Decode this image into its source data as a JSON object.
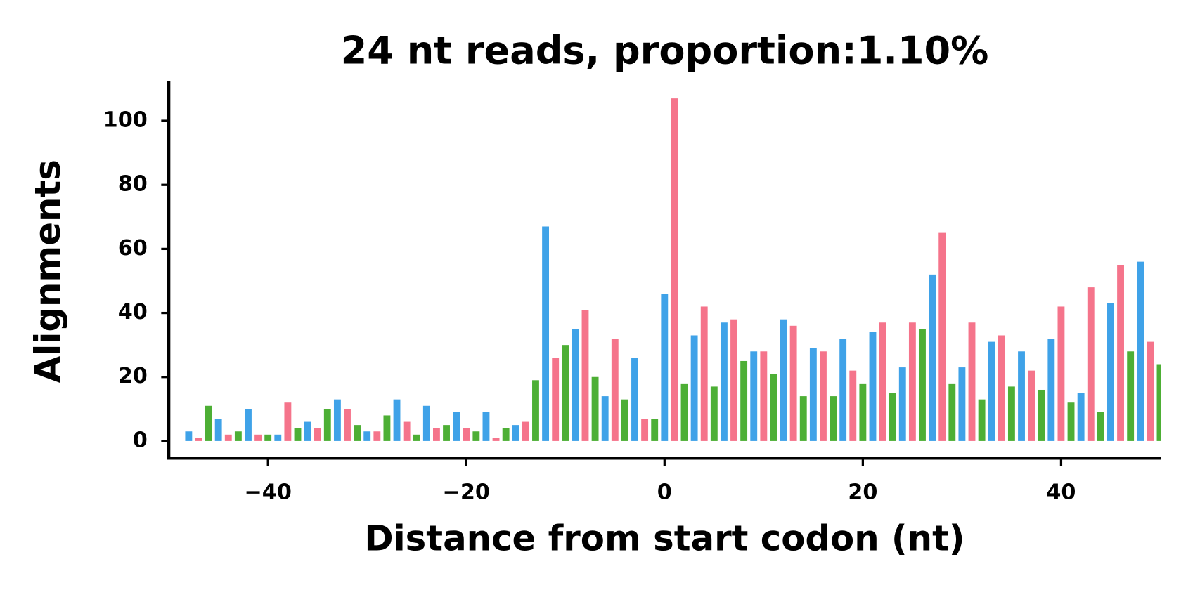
{
  "chart_data": {
    "type": "bar",
    "title": "24 nt reads, proportion:1.10%",
    "xlabel": "Distance from start codon (nt)",
    "ylabel": "Alignments",
    "x": [
      -48,
      -47,
      -46,
      -45,
      -44,
      -43,
      -42,
      -41,
      -40,
      -39,
      -38,
      -37,
      -36,
      -35,
      -34,
      -33,
      -32,
      -31,
      -30,
      -29,
      -28,
      -27,
      -26,
      -25,
      -24,
      -23,
      -22,
      -21,
      -20,
      -19,
      -18,
      -17,
      -16,
      -15,
      -14,
      -13,
      -12,
      -11,
      -10,
      -9,
      -8,
      -7,
      -6,
      -5,
      -4,
      -3,
      -2,
      -1,
      0,
      1,
      2,
      3,
      4,
      5,
      6,
      7,
      8,
      9,
      10,
      11,
      12,
      13,
      14,
      15,
      16,
      17,
      18,
      19,
      20,
      21,
      22,
      23,
      24,
      25,
      26,
      27,
      28,
      29,
      30,
      31,
      32,
      33,
      34,
      35,
      36,
      37,
      38,
      39,
      40,
      41,
      42,
      43,
      44,
      45,
      46,
      47,
      48,
      49,
      50
    ],
    "values": [
      3,
      1,
      11,
      7,
      2,
      3,
      10,
      2,
      2,
      2,
      12,
      4,
      6,
      4,
      10,
      13,
      10,
      5,
      3,
      3,
      8,
      13,
      6,
      2,
      11,
      4,
      5,
      9,
      4,
      3,
      9,
      1,
      4,
      5,
      6,
      19,
      67,
      26,
      30,
      35,
      41,
      20,
      14,
      32,
      13,
      26,
      7,
      7,
      46,
      107,
      18,
      33,
      42,
      17,
      37,
      38,
      25,
      28,
      28,
      21,
      38,
      36,
      14,
      29,
      28,
      14,
      32,
      22,
      18,
      34,
      37,
      15,
      23,
      37,
      35,
      52,
      65,
      18,
      23,
      37,
      13,
      31,
      33,
      17,
      28,
      22,
      16,
      32,
      42,
      12,
      15,
      48,
      9,
      43,
      55,
      28,
      56,
      31,
      24
    ],
    "frame_colors": [
      "#3fa2e8",
      "#f5748b",
      "#4daf35"
    ],
    "xlim": [
      -50,
      50.1
    ],
    "ylim": [
      -5.35,
      112.35
    ],
    "xticks": [
      -40,
      -20,
      0,
      20,
      40
    ],
    "yticks": [
      0,
      20,
      40,
      60,
      80,
      100
    ]
  }
}
